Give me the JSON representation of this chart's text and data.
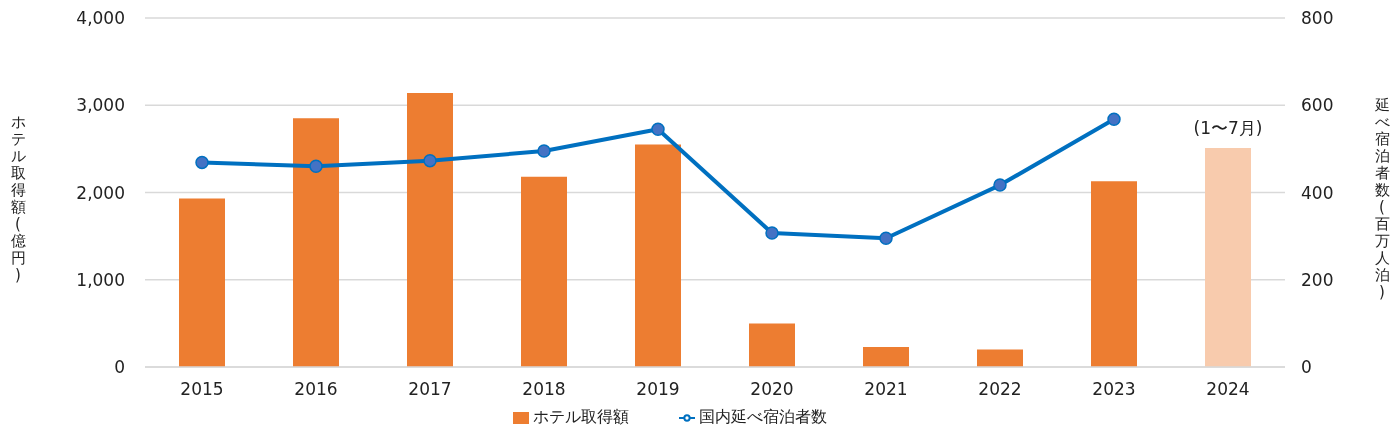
{
  "chart_data": {
    "type": "bar",
    "xlabel": null,
    "ylabel": "ホテル取得額(億円)",
    "y2label": "延べ宿泊者数(百万人泊)",
    "categories": [
      "2015",
      "2016",
      "2017",
      "2018",
      "2019",
      "2020",
      "2021",
      "2022",
      "2023",
      "2024"
    ],
    "series": [
      {
        "name": "ホテル取得額",
        "color": "#ed7d31",
        "colors": [
          "#ed7d31",
          "#ed7d31",
          "#ed7d31",
          "#ed7d31",
          "#ed7d31",
          "#ed7d31",
          "#ed7d31",
          "#ed7d31",
          "#ed7d31",
          "#f8cbad"
        ],
        "values": [
          1930,
          2850,
          3140,
          2180,
          2550,
          500,
          230,
          200,
          2130,
          2510
        ]
      },
      {
        "name": "国内延べ宿泊者数",
        "type": "line",
        "axis": "y2",
        "color": "#0070c0",
        "marker": "circle",
        "values": [
          469,
          460,
          473,
          495,
          545,
          307,
          295,
          417,
          568,
          null
        ]
      }
    ],
    "ylim": [
      0,
      4000
    ],
    "yticks": [
      0,
      {
        "value": 1000,
        "label": "1,000"
      },
      {
        "value": 2000,
        "label": "2,000"
      },
      {
        "value": 3000,
        "label": "3,000"
      },
      {
        "value": 4000,
        "label": "4,000"
      }
    ],
    "y2lim": [
      0,
      800
    ],
    "y2ticks": [
      0,
      200,
      400,
      600,
      800
    ],
    "grid": "y",
    "legend": "bottom",
    "annotations": [
      {
        "text": "(1〜7月)",
        "x": "2024",
        "y": 2510
      }
    ]
  }
}
